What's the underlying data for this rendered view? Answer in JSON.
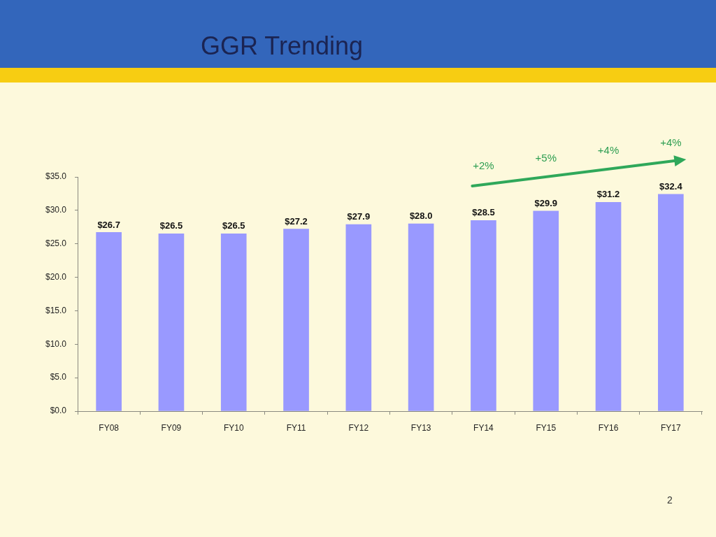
{
  "chart_data": {
    "type": "bar",
    "title": "GGR Trending",
    "categories": [
      "FY08",
      "FY09",
      "FY10",
      "FY11",
      "FY12",
      "FY13",
      "FY14",
      "FY15",
      "FY16",
      "FY17"
    ],
    "values": [
      26.7,
      26.5,
      26.5,
      27.2,
      27.9,
      28.0,
      28.5,
      29.9,
      31.2,
      32.4
    ],
    "value_labels": [
      "$26.7",
      "$26.5",
      "$26.5",
      "$27.2",
      "$27.9",
      "$28.0",
      "$28.5",
      "$29.9",
      "$31.2",
      "$32.4"
    ],
    "color": "#9999ff",
    "ylim": [
      0,
      35
    ],
    "yticks": [
      {
        "value": 0,
        "label": "$0.0"
      },
      {
        "value": 5,
        "label": "$5.0"
      },
      {
        "value": 10,
        "label": "$10.0"
      },
      {
        "value": 15,
        "label": "$15.0"
      },
      {
        "value": 20,
        "label": "$20.0"
      },
      {
        "value": 25,
        "label": "$25.0"
      },
      {
        "value": 30,
        "label": "$30.0"
      },
      {
        "value": 35,
        "label": "$35.0"
      }
    ],
    "annotations": [
      "+2%",
      "+5%",
      "+4%",
      "+4%",
      "2"
    ]
  }
}
